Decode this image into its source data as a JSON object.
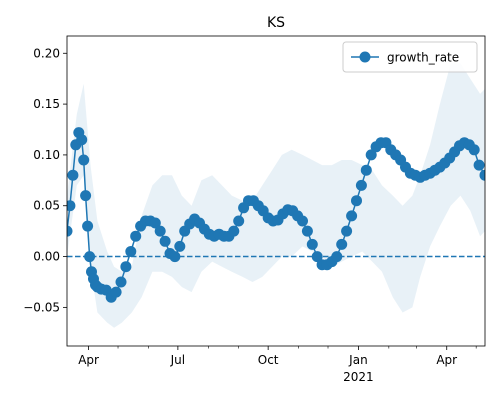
{
  "chart_data": {
    "type": "line",
    "title": "KS",
    "xlabel": "",
    "ylabel": "",
    "xlim": [
      "2020-03-10",
      "2021-05-10"
    ],
    "ylim": [
      -0.088,
      0.217
    ],
    "x_ticks": [
      {
        "date": "2020-04-01",
        "label": "Apr",
        "sublabel": ""
      },
      {
        "date": "2020-07-01",
        "label": "Jul",
        "sublabel": ""
      },
      {
        "date": "2020-10-01",
        "label": "Oct",
        "sublabel": ""
      },
      {
        "date": "2021-01-01",
        "label": "Jan",
        "sublabel": "2021"
      },
      {
        "date": "2021-04-01",
        "label": "Apr",
        "sublabel": ""
      }
    ],
    "x_minor_ticks": [
      "2020-05-01",
      "2020-06-01",
      "2020-08-01",
      "2020-09-01",
      "2020-11-01",
      "2020-12-01",
      "2021-02-01",
      "2021-03-01",
      "2021-05-01"
    ],
    "y_ticks": [
      -0.05,
      0.0,
      0.05,
      0.1,
      0.15,
      0.2
    ],
    "y_tick_labels": [
      "−0.05",
      "0.00",
      "0.05",
      "0.10",
      "0.15",
      "0.20"
    ],
    "reference_line": {
      "y": 0,
      "style": "dashed",
      "color": "#1f77b4"
    },
    "legend": {
      "position": "top-right",
      "entries": [
        "growth_rate"
      ]
    },
    "grid": false,
    "band": {
      "x": [
        "2020-03-10",
        "2020-03-20",
        "2020-03-27",
        "2020-04-03",
        "2020-04-10",
        "2020-04-20",
        "2020-04-27",
        "2020-05-05",
        "2020-05-15",
        "2020-05-25",
        "2020-06-05",
        "2020-06-15",
        "2020-06-25",
        "2020-07-05",
        "2020-07-15",
        "2020-07-25",
        "2020-08-05",
        "2020-08-15",
        "2020-08-25",
        "2020-09-05",
        "2020-09-15",
        "2020-09-25",
        "2020-10-05",
        "2020-10-15",
        "2020-10-25",
        "2020-11-05",
        "2020-11-15",
        "2020-11-25",
        "2020-12-05",
        "2020-12-15",
        "2020-12-25",
        "2021-01-05",
        "2021-01-15",
        "2021-01-25",
        "2021-02-05",
        "2021-02-15",
        "2021-02-25",
        "2021-03-05",
        "2021-03-15",
        "2021-03-25",
        "2021-04-05",
        "2021-04-15",
        "2021-04-25",
        "2021-05-05",
        "2021-05-10"
      ],
      "upper": [
        0.06,
        0.14,
        0.17,
        0.09,
        0.035,
        0.005,
        -0.01,
        -0.015,
        -0.01,
        0.04,
        0.07,
        0.08,
        0.08,
        0.06,
        0.05,
        0.075,
        0.08,
        0.07,
        0.06,
        0.055,
        0.055,
        0.07,
        0.085,
        0.1,
        0.105,
        0.1,
        0.095,
        0.09,
        0.09,
        0.095,
        0.095,
        0.09,
        0.085,
        0.07,
        0.06,
        0.05,
        0.06,
        0.08,
        0.11,
        0.15,
        0.19,
        0.19,
        0.175,
        0.16,
        0.165
      ],
      "lower": [
        0.0,
        0.07,
        0.08,
        -0.01,
        -0.055,
        -0.065,
        -0.07,
        -0.065,
        -0.055,
        -0.04,
        -0.015,
        -0.015,
        -0.02,
        -0.03,
        -0.035,
        -0.015,
        -0.005,
        -0.01,
        -0.015,
        -0.02,
        -0.025,
        -0.02,
        -0.01,
        0.0,
        0.0,
        0.01,
        0.005,
        0.0,
        -0.01,
        -0.005,
        0.0,
        0.005,
        -0.005,
        -0.015,
        -0.04,
        -0.055,
        -0.05,
        -0.02,
        0.01,
        0.03,
        0.05,
        0.06,
        0.045,
        0.02,
        0.025
      ]
    },
    "series": [
      {
        "name": "growth_rate",
        "color": "#1f77b4",
        "x": [
          "2020-03-10",
          "2020-03-13",
          "2020-03-16",
          "2020-03-19",
          "2020-03-22",
          "2020-03-25",
          "2020-03-27",
          "2020-03-29",
          "2020-03-31",
          "2020-04-02",
          "2020-04-04",
          "2020-04-06",
          "2020-04-08",
          "2020-04-10",
          "2020-04-14",
          "2020-04-19",
          "2020-04-24",
          "2020-04-29",
          "2020-05-04",
          "2020-05-09",
          "2020-05-14",
          "2020-05-19",
          "2020-05-24",
          "2020-05-29",
          "2020-06-03",
          "2020-06-08",
          "2020-06-13",
          "2020-06-18",
          "2020-06-23",
          "2020-06-28",
          "2020-07-03",
          "2020-07-08",
          "2020-07-13",
          "2020-07-18",
          "2020-07-23",
          "2020-07-28",
          "2020-08-02",
          "2020-08-07",
          "2020-08-12",
          "2020-08-17",
          "2020-08-22",
          "2020-08-27",
          "2020-09-01",
          "2020-09-06",
          "2020-09-11",
          "2020-09-16",
          "2020-09-21",
          "2020-09-26",
          "2020-10-01",
          "2020-10-06",
          "2020-10-11",
          "2020-10-16",
          "2020-10-21",
          "2020-10-26",
          "2020-10-31",
          "2020-11-05",
          "2020-11-10",
          "2020-11-15",
          "2020-11-20",
          "2020-11-25",
          "2020-11-30",
          "2020-12-05",
          "2020-12-10",
          "2020-12-15",
          "2020-12-20",
          "2020-12-25",
          "2020-12-30",
          "2021-01-04",
          "2021-01-09",
          "2021-01-14",
          "2021-01-19",
          "2021-01-24",
          "2021-01-29",
          "2021-02-03",
          "2021-02-08",
          "2021-02-13",
          "2021-02-18",
          "2021-02-23",
          "2021-02-28",
          "2021-03-05",
          "2021-03-10",
          "2021-03-15",
          "2021-03-20",
          "2021-03-25",
          "2021-03-30",
          "2021-04-04",
          "2021-04-09",
          "2021-04-14",
          "2021-04-19",
          "2021-04-24",
          "2021-04-29",
          "2021-05-04",
          "2021-05-10"
        ],
        "values": [
          0.025,
          0.05,
          0.08,
          0.11,
          0.122,
          0.115,
          0.095,
          0.06,
          0.03,
          0.0,
          -0.015,
          -0.022,
          -0.028,
          -0.03,
          -0.032,
          -0.033,
          -0.04,
          -0.035,
          -0.025,
          -0.01,
          0.005,
          0.02,
          0.03,
          0.035,
          0.035,
          0.033,
          0.025,
          0.015,
          0.003,
          0.0,
          0.01,
          0.025,
          0.032,
          0.037,
          0.033,
          0.027,
          0.022,
          0.02,
          0.022,
          0.02,
          0.02,
          0.025,
          0.035,
          0.048,
          0.055,
          0.055,
          0.05,
          0.045,
          0.038,
          0.035,
          0.036,
          0.042,
          0.046,
          0.045,
          0.04,
          0.035,
          0.025,
          0.012,
          0.0,
          -0.008,
          -0.008,
          -0.005,
          0.0,
          0.012,
          0.025,
          0.04,
          0.055,
          0.07,
          0.085,
          0.1,
          0.108,
          0.112,
          0.112,
          0.105,
          0.1,
          0.095,
          0.088,
          0.082,
          0.08,
          0.078,
          0.08,
          0.082,
          0.085,
          0.088,
          0.092,
          0.097,
          0.103,
          0.109,
          0.112,
          0.11,
          0.105,
          0.09,
          0.08
        ]
      }
    ]
  }
}
